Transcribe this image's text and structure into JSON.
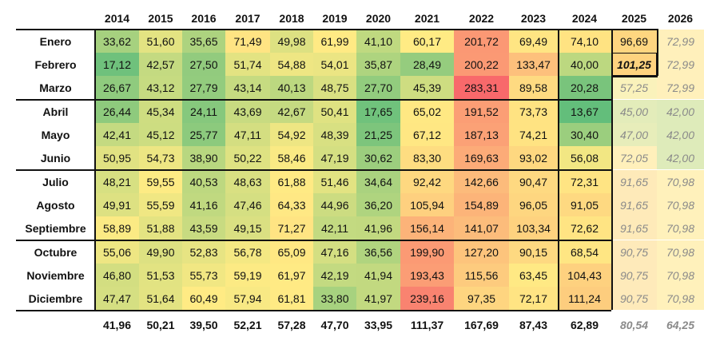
{
  "chart_data": {
    "type": "heatmap",
    "years": [
      "2014",
      "2015",
      "2016",
      "2017",
      "2018",
      "2019",
      "2020",
      "2021",
      "2022",
      "2023",
      "2024",
      "2025",
      "2026"
    ],
    "months": [
      "Enero",
      "Febrero",
      "Marzo",
      "Abril",
      "Mayo",
      "Junio",
      "Julio",
      "Agosto",
      "Septiembre",
      "Octubre",
      "Noviembre",
      "Diciembre"
    ],
    "values": [
      [
        "33,62",
        "51,60",
        "35,65",
        "71,49",
        "49,98",
        "61,99",
        "41,10",
        "60,17",
        "201,72",
        "69,49",
        "74,10",
        "96,69",
        "72,99"
      ],
      [
        "17,12",
        "42,57",
        "27,50",
        "51,74",
        "54,88",
        "54,01",
        "35,87",
        "28,49",
        "200,22",
        "133,47",
        "40,00",
        "101,25",
        "72,99"
      ],
      [
        "26,67",
        "43,12",
        "27,79",
        "43,14",
        "40,13",
        "48,75",
        "27,70",
        "45,39",
        "283,31",
        "89,58",
        "20,28",
        "57,25",
        "72,99"
      ],
      [
        "26,44",
        "45,34",
        "24,11",
        "43,69",
        "42,67",
        "50,41",
        "17,65",
        "65,02",
        "191,52",
        "73,73",
        "13,67",
        "45,00",
        "42,00"
      ],
      [
        "42,41",
        "45,12",
        "25,77",
        "47,11",
        "54,92",
        "48,39",
        "21,25",
        "67,12",
        "187,13",
        "74,21",
        "30,40",
        "47,00",
        "42,00"
      ],
      [
        "50,95",
        "54,73",
        "38,90",
        "50,22",
        "58,46",
        "47,19",
        "30,62",
        "83,30",
        "169,63",
        "93,02",
        "56,08",
        "72,05",
        "42,00"
      ],
      [
        "48,21",
        "59,55",
        "40,53",
        "48,63",
        "61,88",
        "51,46",
        "34,64",
        "92,42",
        "142,66",
        "90,47",
        "72,31",
        "91,65",
        "70,98"
      ],
      [
        "49,91",
        "55,59",
        "41,16",
        "47,46",
        "64,33",
        "44,96",
        "36,20",
        "105,94",
        "154,89",
        "96,05",
        "91,05",
        "91,65",
        "70,98"
      ],
      [
        "58,89",
        "51,88",
        "43,59",
        "49,15",
        "71,27",
        "42,11",
        "41,96",
        "156,14",
        "141,07",
        "103,34",
        "72,62",
        "91,65",
        "70,98"
      ],
      [
        "55,06",
        "49,90",
        "52,83",
        "56,78",
        "65,09",
        "47,16",
        "36,56",
        "199,90",
        "127,20",
        "90,15",
        "68,54",
        "90,75",
        "70,98"
      ],
      [
        "46,80",
        "51,53",
        "55,73",
        "59,19",
        "61,97",
        "42,19",
        "41,94",
        "193,43",
        "115,56",
        "63,45",
        "104,43",
        "90,75",
        "70,98"
      ],
      [
        "47,47",
        "51,64",
        "60,49",
        "57,94",
        "61,81",
        "33,80",
        "41,97",
        "239,16",
        "97,35",
        "72,17",
        "111,24",
        "90,75",
        "70,98"
      ]
    ],
    "averages": [
      "41,96",
      "50,21",
      "39,50",
      "52,21",
      "57,28",
      "47,70",
      "33,95",
      "111,37",
      "167,69",
      "87,43",
      "62,89",
      "80,54",
      "64,25"
    ],
    "projected_from": {
      "2025": 2,
      "2026": 0
    },
    "highlighted_cell": {
      "year": "2025",
      "month": "Febrero"
    },
    "color_scale": {
      "min": 13.67,
      "mid": 60,
      "max": 283.31,
      "low_color": "#63be7b",
      "mid_color": "#ffeb84",
      "high_color": "#f8696b"
    }
  }
}
